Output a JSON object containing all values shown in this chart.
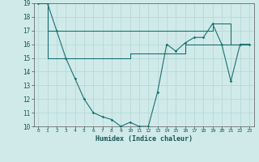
{
  "xlabel": "Humidex (Indice chaleur)",
  "xlim": [
    -0.5,
    23.5
  ],
  "ylim": [
    10,
    19
  ],
  "yticks": [
    10,
    11,
    12,
    13,
    14,
    15,
    16,
    17,
    18,
    19
  ],
  "xticks": [
    0,
    1,
    2,
    3,
    4,
    5,
    6,
    7,
    8,
    9,
    10,
    11,
    12,
    13,
    14,
    15,
    16,
    17,
    18,
    19,
    20,
    21,
    22,
    23
  ],
  "background_color": "#d0eaea",
  "grid_color": "#b8d8d8",
  "line_color": "#1a7070",
  "line1_x": [
    0,
    1,
    2,
    3,
    4,
    5,
    6,
    7,
    8,
    9,
    10,
    11,
    12,
    13,
    14,
    15,
    16,
    17,
    18,
    19,
    20,
    21,
    22,
    23
  ],
  "line1_y": [
    19,
    19,
    17,
    15,
    13.5,
    12,
    11,
    10.7,
    10.5,
    10,
    10.3,
    10,
    10,
    12.5,
    16,
    15.5,
    16.1,
    16.5,
    16.5,
    17.5,
    16,
    13.3,
    16,
    16
  ],
  "line2_x": [
    0,
    1,
    2,
    3,
    4,
    5,
    6,
    7,
    8,
    9,
    10,
    11,
    12,
    13,
    14,
    15,
    16,
    17,
    18,
    19,
    20,
    21,
    22,
    23
  ],
  "line2_y": [
    19,
    17,
    17,
    17,
    17,
    17,
    17,
    17,
    17,
    17,
    17,
    17,
    17,
    17,
    17,
    17,
    17,
    17,
    17,
    17.5,
    17.5,
    16,
    16,
    16
  ],
  "line3_x": [
    0,
    1,
    2,
    3,
    4,
    5,
    6,
    7,
    8,
    9,
    10,
    11,
    12,
    13,
    14,
    15,
    16,
    17,
    18,
    19,
    20,
    21,
    22,
    23
  ],
  "line3_y": [
    19,
    15,
    15,
    15,
    15,
    15,
    15,
    15,
    15,
    15,
    15.3,
    15.3,
    15.3,
    15.3,
    15.3,
    15.3,
    16,
    16,
    16,
    16,
    16,
    16,
    16,
    16
  ]
}
